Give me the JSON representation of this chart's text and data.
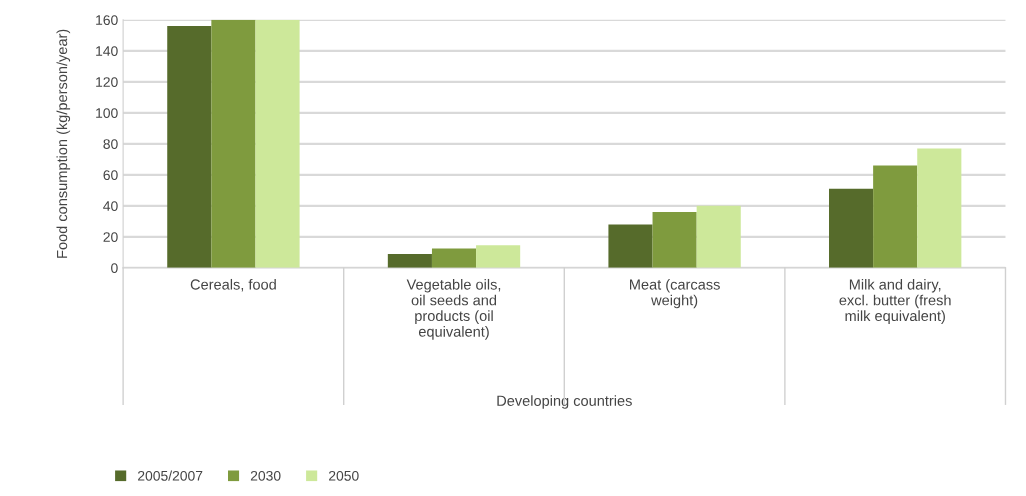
{
  "chart_data": {
    "type": "bar",
    "categories": [
      "Cereals, food",
      "Vegetable oils,\noil seeds and\nproducts (oil\nequivalent)",
      "Meat (carcass\nweight)",
      "Milk and dairy,\nexcl. butter (fresh\nmilk equivalent)"
    ],
    "series": [
      {
        "name": "2005/2007",
        "color": "#566b2b",
        "values": [
          156,
          9,
          28,
          51
        ]
      },
      {
        "name": "2030",
        "color": "#7f9b3e",
        "values": [
          160,
          12.5,
          36,
          66
        ]
      },
      {
        "name": "2050",
        "color": "#cde89a",
        "values": [
          160,
          14.5,
          40,
          77
        ]
      }
    ],
    "xlabel": "Developing countries",
    "ylabel": "Food consumption (kg/person/year)",
    "ylim": [
      0,
      160
    ],
    "yticks": [
      0,
      20,
      40,
      60,
      80,
      100,
      120,
      140,
      160
    ],
    "grid": "y",
    "legend": "bottom left"
  }
}
